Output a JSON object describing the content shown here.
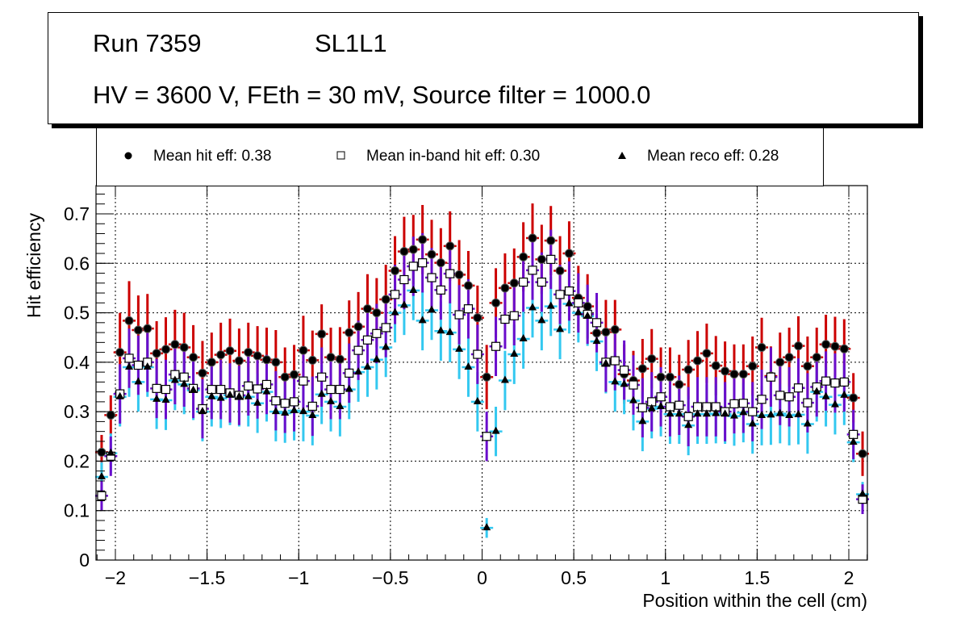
{
  "header": {
    "run_label": "Run 7359",
    "layer_label": "SL1L1",
    "conditions": "HV = 3600 V, FEth = 30 mV, Source filter = 1000.0"
  },
  "legend": [
    {
      "marker": "filled-circle",
      "label": "Mean hit  eff: 0.38"
    },
    {
      "marker": "open-square",
      "label": "Mean in-band hit eff: 0.30"
    },
    {
      "marker": "filled-triangle",
      "label": "Mean reco eff: 0.28"
    }
  ],
  "colors": {
    "hit_err": "#cc0000",
    "inband_err": "#6a0dcc",
    "reco_err": "#33c8f0",
    "marker": "#000000",
    "grid": "#000000"
  },
  "chart_data": {
    "type": "scatter",
    "title": "",
    "xlabel": "Position within the cell (cm)",
    "ylabel": "Hit efficiency",
    "xlim": [
      -2.1,
      2.1
    ],
    "ylim": [
      0,
      0.76
    ],
    "grid": true,
    "x_ticks": [
      -2,
      -1.5,
      -1,
      -0.5,
      0,
      0.5,
      1,
      1.5,
      2
    ],
    "x_tick_labels": [
      "−2",
      "−1.5",
      "−1",
      "−0.5",
      "0",
      "0.5",
      "1",
      "1.5",
      "2"
    ],
    "y_ticks": [
      0,
      0.1,
      0.2,
      0.3,
      0.4,
      0.5,
      0.6,
      0.7
    ],
    "y_tick_labels": [
      "0",
      "0.1",
      "0.2",
      "0.3",
      "0.4",
      "0.5",
      "0.6",
      "0.7"
    ],
    "legend_position": "top",
    "x": [
      -2.075,
      -2.025,
      -1.975,
      -1.925,
      -1.875,
      -1.825,
      -1.775,
      -1.725,
      -1.675,
      -1.625,
      -1.575,
      -1.525,
      -1.475,
      -1.425,
      -1.375,
      -1.325,
      -1.275,
      -1.225,
      -1.175,
      -1.125,
      -1.075,
      -1.025,
      -0.975,
      -0.925,
      -0.875,
      -0.825,
      -0.775,
      -0.725,
      -0.675,
      -0.625,
      -0.575,
      -0.525,
      -0.475,
      -0.425,
      -0.375,
      -0.325,
      -0.275,
      -0.225,
      -0.175,
      -0.125,
      -0.075,
      -0.025,
      0.025,
      0.075,
      0.125,
      0.175,
      0.225,
      0.275,
      0.325,
      0.375,
      0.425,
      0.475,
      0.525,
      0.575,
      0.625,
      0.675,
      0.725,
      0.775,
      0.825,
      0.875,
      0.925,
      0.975,
      1.025,
      1.075,
      1.125,
      1.175,
      1.225,
      1.275,
      1.325,
      1.375,
      1.425,
      1.475,
      1.525,
      1.575,
      1.625,
      1.675,
      1.725,
      1.775,
      1.825,
      1.875,
      1.925,
      1.975,
      2.025,
      2.075
    ],
    "series": [
      {
        "name": "Mean hit  eff: 0.38",
        "marker": "filled-circle",
        "values": [
          0.218,
          0.293,
          0.42,
          0.484,
          0.465,
          0.468,
          0.418,
          0.426,
          0.436,
          0.43,
          0.41,
          0.378,
          0.4,
          0.415,
          0.423,
          0.403,
          0.42,
          0.413,
          0.405,
          0.4,
          0.37,
          0.375,
          0.424,
          0.404,
          0.457,
          0.41,
          0.406,
          0.46,
          0.472,
          0.508,
          0.5,
          0.527,
          0.585,
          0.624,
          0.628,
          0.648,
          0.618,
          0.601,
          0.635,
          0.577,
          0.555,
          0.49,
          0.37,
          0.52,
          0.55,
          0.56,
          0.613,
          0.651,
          0.608,
          0.646,
          0.585,
          0.62,
          0.53,
          0.513,
          0.459,
          0.461,
          0.466,
          0.376,
          0.363,
          0.387,
          0.407,
          0.37,
          0.37,
          0.355,
          0.385,
          0.403,
          0.418,
          0.393,
          0.382,
          0.376,
          0.376,
          0.392,
          0.43,
          0.372,
          0.4,
          0.41,
          0.433,
          0.392,
          0.41,
          0.436,
          0.432,
          0.427,
          0.328,
          0.215
        ],
        "err": [
          0.035,
          0.04,
          0.08,
          0.08,
          0.07,
          0.07,
          0.065,
          0.065,
          0.07,
          0.07,
          0.065,
          0.065,
          0.06,
          0.065,
          0.065,
          0.065,
          0.06,
          0.06,
          0.065,
          0.065,
          0.06,
          0.06,
          0.07,
          0.06,
          0.06,
          0.06,
          0.065,
          0.065,
          0.07,
          0.07,
          0.07,
          0.07,
          0.07,
          0.07,
          0.07,
          0.07,
          0.07,
          0.07,
          0.07,
          0.07,
          0.07,
          0.065,
          0.065,
          0.07,
          0.07,
          0.07,
          0.07,
          0.07,
          0.07,
          0.07,
          0.07,
          0.065,
          0.065,
          0.065,
          0.065,
          0.065,
          0.06,
          0.06,
          0.06,
          0.06,
          0.06,
          0.06,
          0.06,
          0.06,
          0.06,
          0.06,
          0.06,
          0.06,
          0.06,
          0.06,
          0.06,
          0.06,
          0.06,
          0.06,
          0.06,
          0.06,
          0.06,
          0.06,
          0.06,
          0.06,
          0.06,
          0.06,
          0.05,
          0.045
        ]
      },
      {
        "name": "Mean in-band hit eff: 0.30",
        "marker": "open-square",
        "values": [
          0.13,
          0.21,
          0.336,
          0.408,
          0.394,
          0.4,
          0.347,
          0.345,
          0.375,
          0.37,
          0.347,
          0.306,
          0.345,
          0.345,
          0.338,
          0.333,
          0.352,
          0.346,
          0.355,
          0.322,
          0.317,
          0.32,
          0.362,
          0.311,
          0.37,
          0.345,
          0.345,
          0.378,
          0.424,
          0.445,
          0.458,
          0.47,
          0.537,
          0.567,
          0.594,
          0.601,
          0.571,
          0.546,
          0.579,
          0.496,
          0.508,
          0.416,
          0.25,
          0.432,
          0.487,
          0.494,
          0.562,
          0.586,
          0.562,
          0.608,
          0.537,
          0.544,
          0.52,
          0.497,
          0.48,
          0.4,
          0.403,
          0.384,
          0.354,
          0.308,
          0.32,
          0.33,
          0.31,
          0.313,
          0.29,
          0.31,
          0.31,
          0.31,
          0.3,
          0.316,
          0.317,
          0.3,
          0.325,
          0.37,
          0.333,
          0.33,
          0.348,
          0.318,
          0.35,
          0.362,
          0.358,
          0.36,
          0.254,
          0.123
        ],
        "err": [
          0.03,
          0.04,
          0.06,
          0.06,
          0.06,
          0.06,
          0.06,
          0.06,
          0.06,
          0.06,
          0.06,
          0.06,
          0.06,
          0.06,
          0.06,
          0.06,
          0.06,
          0.06,
          0.06,
          0.06,
          0.06,
          0.06,
          0.06,
          0.06,
          0.06,
          0.06,
          0.06,
          0.06,
          0.06,
          0.06,
          0.06,
          0.06,
          0.06,
          0.06,
          0.06,
          0.06,
          0.06,
          0.06,
          0.06,
          0.06,
          0.06,
          0.06,
          0.05,
          0.06,
          0.06,
          0.06,
          0.06,
          0.06,
          0.06,
          0.06,
          0.06,
          0.06,
          0.06,
          0.06,
          0.06,
          0.06,
          0.06,
          0.06,
          0.06,
          0.06,
          0.06,
          0.06,
          0.06,
          0.06,
          0.06,
          0.06,
          0.06,
          0.06,
          0.06,
          0.06,
          0.06,
          0.06,
          0.06,
          0.06,
          0.06,
          0.06,
          0.06,
          0.06,
          0.06,
          0.06,
          0.06,
          0.06,
          0.05,
          0.03
        ]
      },
      {
        "name": "Mean reco eff: 0.28",
        "marker": "filled-triangle",
        "values": [
          0.168,
          0.216,
          0.33,
          0.39,
          0.36,
          0.39,
          0.325,
          0.323,
          0.363,
          0.355,
          0.343,
          0.3,
          0.33,
          0.327,
          0.333,
          0.33,
          0.33,
          0.317,
          0.34,
          0.3,
          0.297,
          0.302,
          0.3,
          0.292,
          0.335,
          0.32,
          0.31,
          0.345,
          0.38,
          0.39,
          0.405,
          0.43,
          0.5,
          0.515,
          0.545,
          0.484,
          0.505,
          0.463,
          0.46,
          0.426,
          0.39,
          0.32,
          0.065,
          0.26,
          0.363,
          0.416,
          0.447,
          0.51,
          0.484,
          0.513,
          0.466,
          0.518,
          0.5,
          0.493,
          0.442,
          0.397,
          0.36,
          0.355,
          0.322,
          0.28,
          0.306,
          0.31,
          0.295,
          0.295,
          0.272,
          0.295,
          0.295,
          0.296,
          0.295,
          0.291,
          0.298,
          0.275,
          0.292,
          0.293,
          0.296,
          0.292,
          0.294,
          0.275,
          0.34,
          0.33,
          0.314,
          0.333,
          0.238,
          0.133
        ],
        "err": [
          0.03,
          0.04,
          0.06,
          0.06,
          0.06,
          0.06,
          0.06,
          0.06,
          0.06,
          0.06,
          0.06,
          0.06,
          0.06,
          0.06,
          0.06,
          0.06,
          0.06,
          0.06,
          0.06,
          0.06,
          0.06,
          0.06,
          0.06,
          0.06,
          0.06,
          0.06,
          0.06,
          0.06,
          0.06,
          0.06,
          0.06,
          0.06,
          0.06,
          0.06,
          0.06,
          0.06,
          0.06,
          0.06,
          0.06,
          0.06,
          0.06,
          0.06,
          0.02,
          0.05,
          0.06,
          0.06,
          0.06,
          0.06,
          0.06,
          0.06,
          0.06,
          0.06,
          0.06,
          0.06,
          0.06,
          0.06,
          0.06,
          0.06,
          0.06,
          0.06,
          0.06,
          0.06,
          0.06,
          0.06,
          0.06,
          0.06,
          0.06,
          0.06,
          0.06,
          0.06,
          0.06,
          0.06,
          0.06,
          0.06,
          0.06,
          0.06,
          0.06,
          0.06,
          0.06,
          0.06,
          0.06,
          0.06,
          0.04,
          0.025
        ]
      }
    ]
  }
}
